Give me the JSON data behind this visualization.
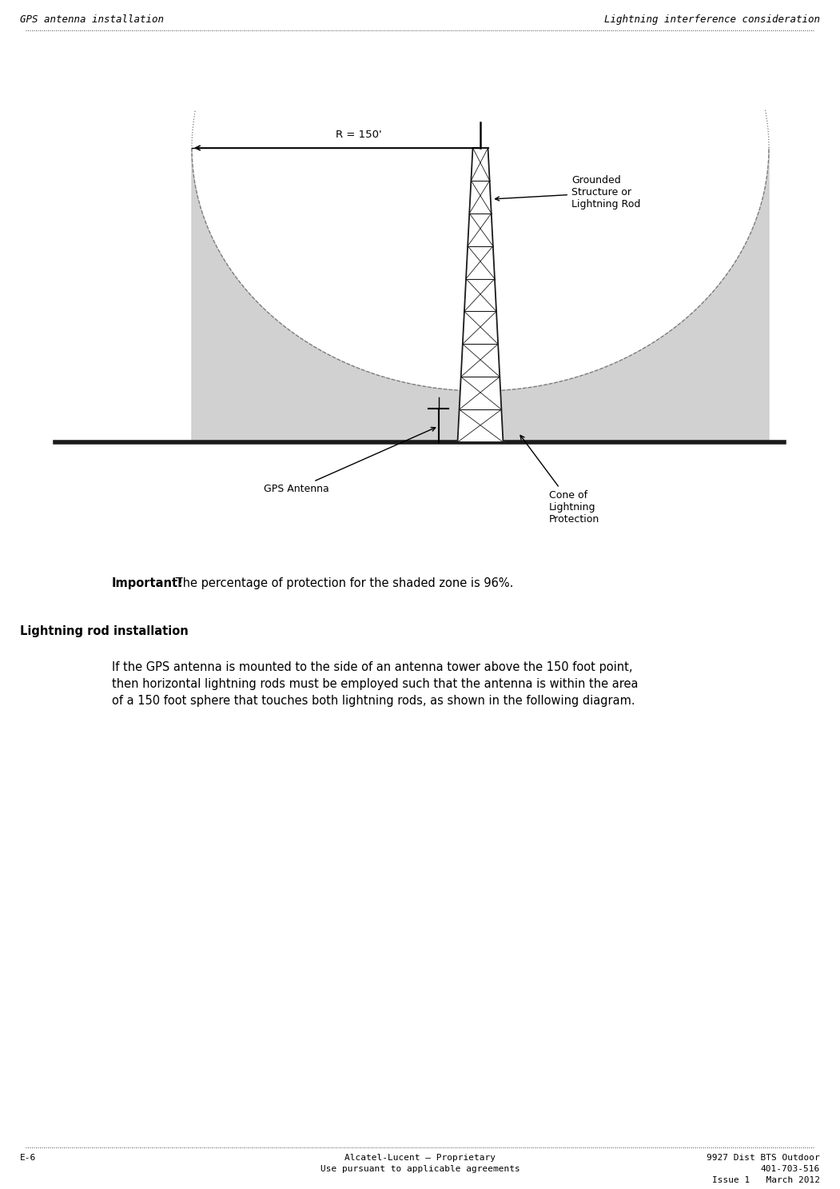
{
  "page_width": 10.51,
  "page_height": 14.87,
  "bg_color": "#ffffff",
  "header_left": "GPS antenna installation",
  "header_right": "Lightning interference consideration",
  "footer_left": "E-6",
  "footer_center_line1": "Alcatel-Lucent – Proprietary",
  "footer_center_line2": "Use pursuant to applicable agreements",
  "footer_right_line1": "9927 Dist BTS Outdoor",
  "footer_right_line2": "401-703-516",
  "footer_right_line3": "Issue 1   March 2012",
  "important_text": "Important!",
  "important_body": " The percentage of protection for the shaded zone is 96%.",
  "lightning_rod_title": "Lightning rod installation",
  "body_text": "If the GPS antenna is mounted to the side of an antenna tower above the 150 foot point,\nthen horizontal lightning rods must be employed such that the antenna is within the area\nof a 150 foot sphere that touches both lightning rods, as shown in the following diagram.",
  "diagram_label_R": "R = 150'",
  "diagram_label_grounded": "Grounded\nStructure or\nLightning Rod",
  "diagram_label_gps": "GPS Antenna",
  "diagram_label_cone": "Cone of\nLightning\nProtection",
  "header_font_size": 9,
  "footer_font_size": 8,
  "body_font_size": 10.5,
  "important_font_size": 10.5,
  "section_title_font_size": 10.5,
  "dotted_line_color": "#000000",
  "diagram_font_size": 8.5,
  "shaded_color": "#cccccc",
  "ground_line_color": "#1a1a1a",
  "tower_color": "#1a1a1a"
}
